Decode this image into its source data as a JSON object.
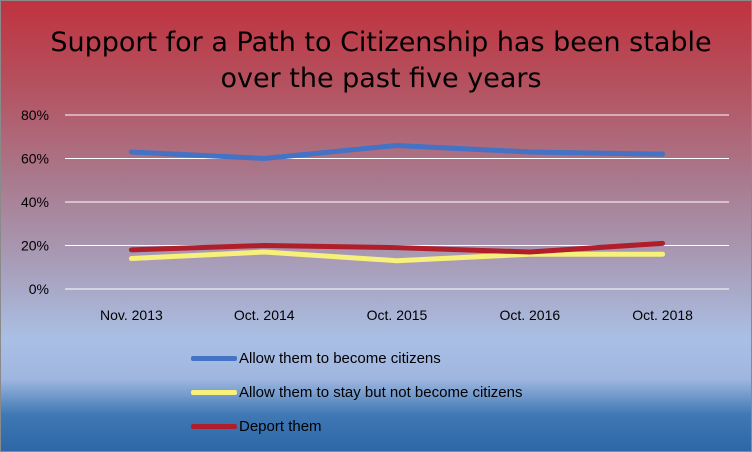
{
  "chart_data": {
    "type": "line",
    "title_lines": [
      "Support for a Path to Citizenship has been stable",
      "over the past five years"
    ],
    "categories": [
      "Nov. 2013",
      "Oct. 2014",
      "Oct. 2015",
      "Oct. 2016",
      "Oct. 2018"
    ],
    "ylim": [
      0,
      80
    ],
    "yticks": [
      0,
      20,
      40,
      60,
      80
    ],
    "ytick_labels": [
      "0%",
      "20%",
      "40%",
      "60%",
      "80%"
    ],
    "grid": true,
    "legend_position": "bottom",
    "series": [
      {
        "name": "Allow them to become citizens",
        "color": "#4472c4",
        "values": [
          63,
          60,
          66,
          63,
          62
        ]
      },
      {
        "name": "Allow them to stay but not become citizens",
        "color": "#f7f07a",
        "values": [
          14,
          17,
          13,
          16,
          16
        ]
      },
      {
        "name": "Deport them",
        "color": "#b01e2a",
        "values": [
          18,
          20,
          19,
          17,
          21
        ]
      }
    ]
  }
}
